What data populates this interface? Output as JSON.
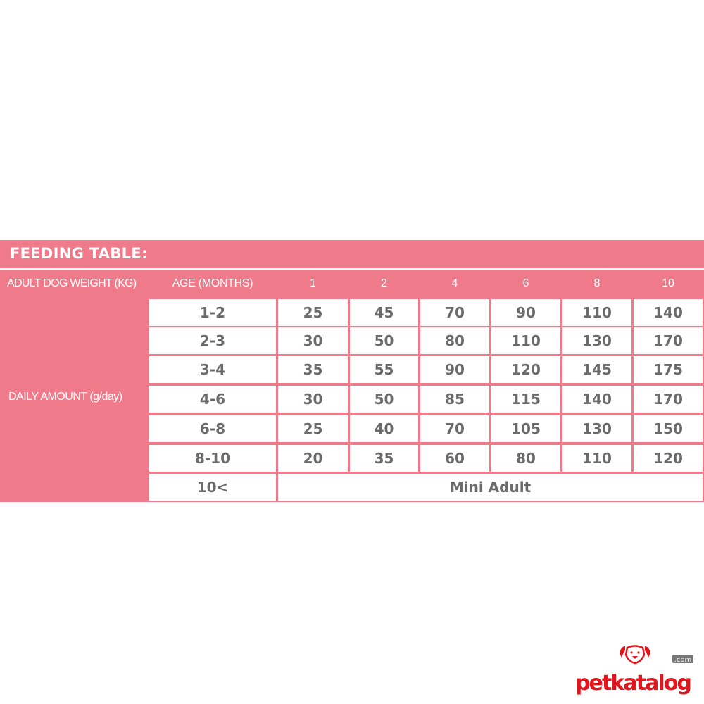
{
  "title": "FEEDING TABLE:",
  "header": {
    "weight_label": "ADULT DOG WEIGHT (KG)",
    "age_label": "AGE (MONTHS)",
    "ages": [
      "1",
      "2",
      "4",
      "6",
      "8",
      "10"
    ]
  },
  "side_label": "DAILY AMOUNT (g/day)",
  "rows": [
    {
      "weight": "1-2",
      "values": [
        "25",
        "45",
        "70",
        "90",
        "110",
        "140"
      ]
    },
    {
      "weight": "2-3",
      "values": [
        "30",
        "50",
        "80",
        "110",
        "130",
        "170"
      ]
    },
    {
      "weight": "3-4",
      "values": [
        "35",
        "55",
        "90",
        "120",
        "145",
        "175"
      ]
    },
    {
      "weight": "4-6",
      "values": [
        "30",
        "50",
        "85",
        "115",
        "140",
        "170"
      ]
    },
    {
      "weight": "6-8",
      "values": [
        "25",
        "40",
        "70",
        "105",
        "130",
        "150"
      ]
    },
    {
      "weight": "8-10",
      "values": [
        "20",
        "35",
        "60",
        "80",
        "110",
        "120"
      ]
    }
  ],
  "last_row": {
    "weight": "10<",
    "note": "Mini Adult"
  },
  "logo": {
    "text": "petkatalog",
    "suffix": ".com"
  },
  "colors": {
    "band": "#ef7b8a",
    "text": "#6b6b6b",
    "logo": "#e3161d"
  }
}
